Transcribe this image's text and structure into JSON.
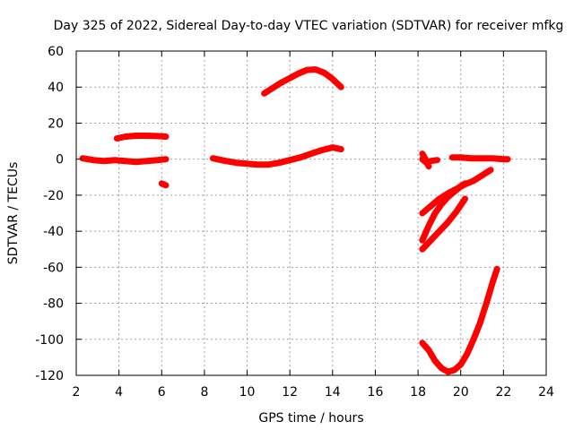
{
  "chart_data": {
    "type": "scatter",
    "title": "Day 325 of 2022, Sidereal Day-to-day VTEC variation (SDTVAR) for receiver mfkg",
    "xlabel": "GPS time / hours",
    "ylabel": "SDTVAR / TECUs",
    "xlim": [
      2,
      24
    ],
    "ylim": [
      -120,
      60
    ],
    "xticks": [
      "2",
      "4",
      "6",
      "8",
      "10",
      "12",
      "14",
      "16",
      "18",
      "20",
      "22",
      "24"
    ],
    "yticks": [
      "-120",
      "-100",
      "-80",
      "-60",
      "-40",
      "-20",
      "0",
      "20",
      "40",
      "60"
    ],
    "grid": true,
    "color": "#ff0000",
    "series": [
      {
        "x": [
          2.3,
          2.8,
          3.3,
          3.8,
          4.3,
          4.8,
          5.3,
          5.8,
          6.2
        ],
        "y": [
          0.5,
          -0.5,
          -1,
          -0.5,
          -1,
          -1.5,
          -1,
          -0.5,
          0
        ]
      },
      {
        "x": [
          3.9,
          4.3,
          4.8,
          5.3,
          5.8,
          6.2
        ],
        "y": [
          11.5,
          12.5,
          13,
          13,
          12.8,
          12.5
        ]
      },
      {
        "x": [
          6.0,
          6.2
        ],
        "y": [
          -13.5,
          -14.5
        ]
      },
      {
        "x": [
          8.4,
          9.0,
          9.5,
          10.0,
          10.5,
          11.0,
          11.5,
          12.0,
          12.5,
          13.0,
          13.5,
          14.0,
          14.4
        ],
        "y": [
          0.5,
          -1,
          -2,
          -2.5,
          -3,
          -3,
          -2,
          -0.5,
          1,
          3,
          5,
          6.5,
          5.5
        ]
      },
      {
        "x": [
          10.8,
          11.2,
          11.6,
          12.0,
          12.4,
          12.8,
          13.2,
          13.6,
          14.0,
          14.4
        ],
        "y": [
          36.5,
          39.5,
          42.5,
          45,
          47.5,
          49.5,
          49.8,
          48,
          44.5,
          40
        ]
      },
      {
        "x": [
          18.2,
          18.4,
          18.6,
          18.9
        ],
        "y": [
          0,
          -2,
          -1,
          -0.5
        ]
      },
      {
        "x": [
          18.2,
          18.35,
          18.5
        ],
        "y": [
          3,
          0,
          -4
        ]
      },
      {
        "x": [
          19.6,
          20.0,
          20.5,
          21.0,
          21.5,
          22.0,
          22.2
        ],
        "y": [
          1,
          1,
          0.5,
          0.5,
          0.5,
          0,
          0
        ]
      },
      {
        "x": [
          18.2,
          18.6,
          19.0,
          19.4,
          19.8,
          20.2,
          20.6,
          21.0,
          21.4
        ],
        "y": [
          -30,
          -26,
          -22,
          -19,
          -16.5,
          -14,
          -12,
          -9,
          -6
        ]
      },
      {
        "x": [
          18.2,
          18.5,
          18.8,
          19.1,
          19.4,
          19.7,
          20.0,
          20.2
        ],
        "y": [
          -45,
          -37,
          -30,
          -25,
          -21,
          -18,
          -15,
          -13.5
        ]
      },
      {
        "x": [
          18.2,
          18.6,
          19.0,
          19.4,
          19.8,
          20.2
        ],
        "y": [
          -50,
          -45,
          -40,
          -35,
          -29,
          -22
        ]
      },
      {
        "x": [
          18.2,
          18.5,
          18.8,
          19.1,
          19.4,
          19.7,
          20.0,
          20.3,
          20.6,
          20.9,
          21.2,
          21.5,
          21.7
        ],
        "y": [
          -102,
          -106,
          -112,
          -116,
          -118,
          -117,
          -114,
          -108,
          -100,
          -91,
          -80,
          -68,
          -61
        ]
      }
    ]
  }
}
